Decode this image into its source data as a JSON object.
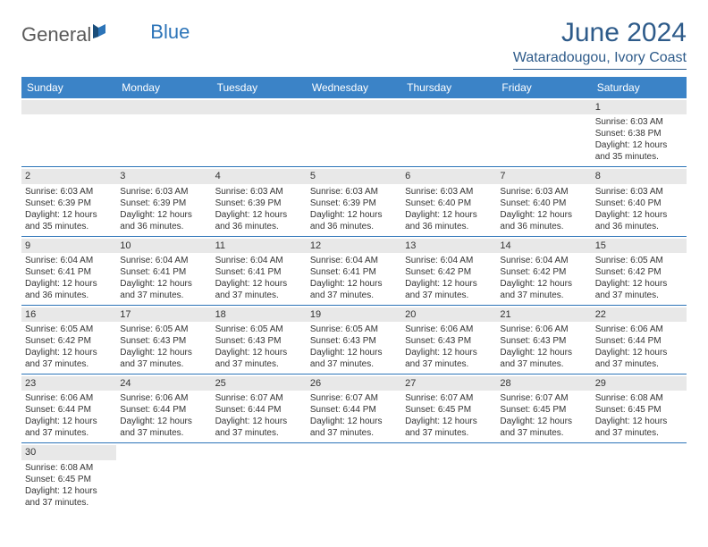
{
  "logo": {
    "general": "General",
    "blue": "Blue"
  },
  "title": "June 2024",
  "location": "Wataradougou, Ivory Coast",
  "colors": {
    "header_bg": "#3b83c7",
    "accent": "#2e5b8a",
    "daynum_bg": "#e8e8e8",
    "text": "#333333",
    "row_border": "#2c74b8"
  },
  "day_headers": [
    "Sunday",
    "Monday",
    "Tuesday",
    "Wednesday",
    "Thursday",
    "Friday",
    "Saturday"
  ],
  "weeks": [
    [
      {
        "num": "",
        "sunrise": "",
        "sunset": "",
        "daylight1": "",
        "daylight2": ""
      },
      {
        "num": "",
        "sunrise": "",
        "sunset": "",
        "daylight1": "",
        "daylight2": ""
      },
      {
        "num": "",
        "sunrise": "",
        "sunset": "",
        "daylight1": "",
        "daylight2": ""
      },
      {
        "num": "",
        "sunrise": "",
        "sunset": "",
        "daylight1": "",
        "daylight2": ""
      },
      {
        "num": "",
        "sunrise": "",
        "sunset": "",
        "daylight1": "",
        "daylight2": ""
      },
      {
        "num": "",
        "sunrise": "",
        "sunset": "",
        "daylight1": "",
        "daylight2": ""
      },
      {
        "num": "1",
        "sunrise": "Sunrise: 6:03 AM",
        "sunset": "Sunset: 6:38 PM",
        "daylight1": "Daylight: 12 hours",
        "daylight2": "and 35 minutes."
      }
    ],
    [
      {
        "num": "2",
        "sunrise": "Sunrise: 6:03 AM",
        "sunset": "Sunset: 6:39 PM",
        "daylight1": "Daylight: 12 hours",
        "daylight2": "and 35 minutes."
      },
      {
        "num": "3",
        "sunrise": "Sunrise: 6:03 AM",
        "sunset": "Sunset: 6:39 PM",
        "daylight1": "Daylight: 12 hours",
        "daylight2": "and 36 minutes."
      },
      {
        "num": "4",
        "sunrise": "Sunrise: 6:03 AM",
        "sunset": "Sunset: 6:39 PM",
        "daylight1": "Daylight: 12 hours",
        "daylight2": "and 36 minutes."
      },
      {
        "num": "5",
        "sunrise": "Sunrise: 6:03 AM",
        "sunset": "Sunset: 6:39 PM",
        "daylight1": "Daylight: 12 hours",
        "daylight2": "and 36 minutes."
      },
      {
        "num": "6",
        "sunrise": "Sunrise: 6:03 AM",
        "sunset": "Sunset: 6:40 PM",
        "daylight1": "Daylight: 12 hours",
        "daylight2": "and 36 minutes."
      },
      {
        "num": "7",
        "sunrise": "Sunrise: 6:03 AM",
        "sunset": "Sunset: 6:40 PM",
        "daylight1": "Daylight: 12 hours",
        "daylight2": "and 36 minutes."
      },
      {
        "num": "8",
        "sunrise": "Sunrise: 6:03 AM",
        "sunset": "Sunset: 6:40 PM",
        "daylight1": "Daylight: 12 hours",
        "daylight2": "and 36 minutes."
      }
    ],
    [
      {
        "num": "9",
        "sunrise": "Sunrise: 6:04 AM",
        "sunset": "Sunset: 6:41 PM",
        "daylight1": "Daylight: 12 hours",
        "daylight2": "and 36 minutes."
      },
      {
        "num": "10",
        "sunrise": "Sunrise: 6:04 AM",
        "sunset": "Sunset: 6:41 PM",
        "daylight1": "Daylight: 12 hours",
        "daylight2": "and 37 minutes."
      },
      {
        "num": "11",
        "sunrise": "Sunrise: 6:04 AM",
        "sunset": "Sunset: 6:41 PM",
        "daylight1": "Daylight: 12 hours",
        "daylight2": "and 37 minutes."
      },
      {
        "num": "12",
        "sunrise": "Sunrise: 6:04 AM",
        "sunset": "Sunset: 6:41 PM",
        "daylight1": "Daylight: 12 hours",
        "daylight2": "and 37 minutes."
      },
      {
        "num": "13",
        "sunrise": "Sunrise: 6:04 AM",
        "sunset": "Sunset: 6:42 PM",
        "daylight1": "Daylight: 12 hours",
        "daylight2": "and 37 minutes."
      },
      {
        "num": "14",
        "sunrise": "Sunrise: 6:04 AM",
        "sunset": "Sunset: 6:42 PM",
        "daylight1": "Daylight: 12 hours",
        "daylight2": "and 37 minutes."
      },
      {
        "num": "15",
        "sunrise": "Sunrise: 6:05 AM",
        "sunset": "Sunset: 6:42 PM",
        "daylight1": "Daylight: 12 hours",
        "daylight2": "and 37 minutes."
      }
    ],
    [
      {
        "num": "16",
        "sunrise": "Sunrise: 6:05 AM",
        "sunset": "Sunset: 6:42 PM",
        "daylight1": "Daylight: 12 hours",
        "daylight2": "and 37 minutes."
      },
      {
        "num": "17",
        "sunrise": "Sunrise: 6:05 AM",
        "sunset": "Sunset: 6:43 PM",
        "daylight1": "Daylight: 12 hours",
        "daylight2": "and 37 minutes."
      },
      {
        "num": "18",
        "sunrise": "Sunrise: 6:05 AM",
        "sunset": "Sunset: 6:43 PM",
        "daylight1": "Daylight: 12 hours",
        "daylight2": "and 37 minutes."
      },
      {
        "num": "19",
        "sunrise": "Sunrise: 6:05 AM",
        "sunset": "Sunset: 6:43 PM",
        "daylight1": "Daylight: 12 hours",
        "daylight2": "and 37 minutes."
      },
      {
        "num": "20",
        "sunrise": "Sunrise: 6:06 AM",
        "sunset": "Sunset: 6:43 PM",
        "daylight1": "Daylight: 12 hours",
        "daylight2": "and 37 minutes."
      },
      {
        "num": "21",
        "sunrise": "Sunrise: 6:06 AM",
        "sunset": "Sunset: 6:43 PM",
        "daylight1": "Daylight: 12 hours",
        "daylight2": "and 37 minutes."
      },
      {
        "num": "22",
        "sunrise": "Sunrise: 6:06 AM",
        "sunset": "Sunset: 6:44 PM",
        "daylight1": "Daylight: 12 hours",
        "daylight2": "and 37 minutes."
      }
    ],
    [
      {
        "num": "23",
        "sunrise": "Sunrise: 6:06 AM",
        "sunset": "Sunset: 6:44 PM",
        "daylight1": "Daylight: 12 hours",
        "daylight2": "and 37 minutes."
      },
      {
        "num": "24",
        "sunrise": "Sunrise: 6:06 AM",
        "sunset": "Sunset: 6:44 PM",
        "daylight1": "Daylight: 12 hours",
        "daylight2": "and 37 minutes."
      },
      {
        "num": "25",
        "sunrise": "Sunrise: 6:07 AM",
        "sunset": "Sunset: 6:44 PM",
        "daylight1": "Daylight: 12 hours",
        "daylight2": "and 37 minutes."
      },
      {
        "num": "26",
        "sunrise": "Sunrise: 6:07 AM",
        "sunset": "Sunset: 6:44 PM",
        "daylight1": "Daylight: 12 hours",
        "daylight2": "and 37 minutes."
      },
      {
        "num": "27",
        "sunrise": "Sunrise: 6:07 AM",
        "sunset": "Sunset: 6:45 PM",
        "daylight1": "Daylight: 12 hours",
        "daylight2": "and 37 minutes."
      },
      {
        "num": "28",
        "sunrise": "Sunrise: 6:07 AM",
        "sunset": "Sunset: 6:45 PM",
        "daylight1": "Daylight: 12 hours",
        "daylight2": "and 37 minutes."
      },
      {
        "num": "29",
        "sunrise": "Sunrise: 6:08 AM",
        "sunset": "Sunset: 6:45 PM",
        "daylight1": "Daylight: 12 hours",
        "daylight2": "and 37 minutes."
      }
    ],
    [
      {
        "num": "30",
        "sunrise": "Sunrise: 6:08 AM",
        "sunset": "Sunset: 6:45 PM",
        "daylight1": "Daylight: 12 hours",
        "daylight2": "and 37 minutes."
      },
      {
        "num": "",
        "sunrise": "",
        "sunset": "",
        "daylight1": "",
        "daylight2": ""
      },
      {
        "num": "",
        "sunrise": "",
        "sunset": "",
        "daylight1": "",
        "daylight2": ""
      },
      {
        "num": "",
        "sunrise": "",
        "sunset": "",
        "daylight1": "",
        "daylight2": ""
      },
      {
        "num": "",
        "sunrise": "",
        "sunset": "",
        "daylight1": "",
        "daylight2": ""
      },
      {
        "num": "",
        "sunrise": "",
        "sunset": "",
        "daylight1": "",
        "daylight2": ""
      },
      {
        "num": "",
        "sunrise": "",
        "sunset": "",
        "daylight1": "",
        "daylight2": ""
      }
    ]
  ]
}
